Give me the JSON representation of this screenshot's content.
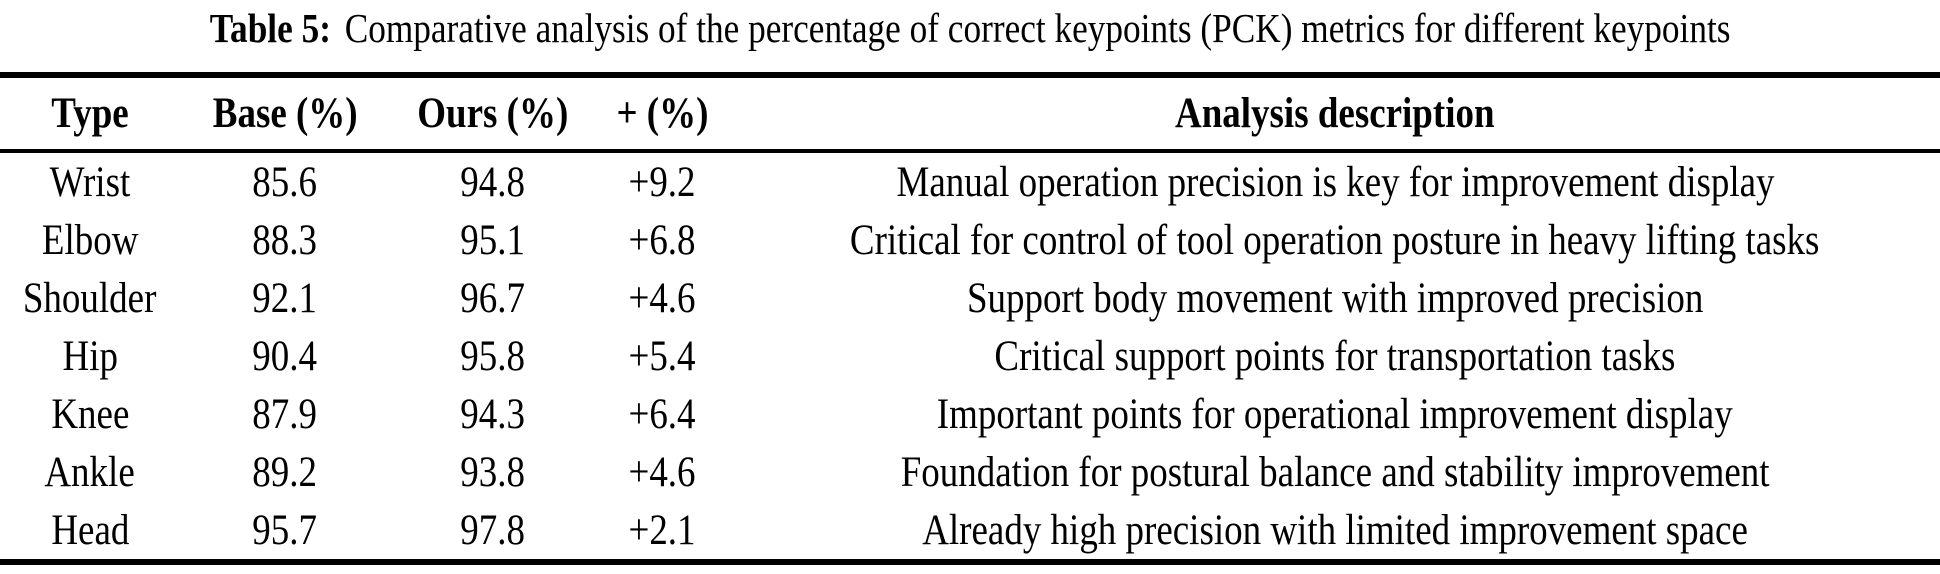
{
  "caption": {
    "label": "Table 5:",
    "text": "Comparative analysis of the percentage of correct keypoints (PCK) metrics for different keypoints"
  },
  "table": {
    "columns": [
      "Type",
      "Base (%)",
      "Ours (%)",
      "+ (%)",
      "Analysis description"
    ],
    "rows": [
      {
        "type": "Wrist",
        "base": "85.6",
        "ours": "94.8",
        "delta": "+9.2",
        "description": "Manual operation precision is key for improvement display"
      },
      {
        "type": "Elbow",
        "base": "88.3",
        "ours": "95.1",
        "delta": "+6.8",
        "description": "Critical for control of tool operation posture in heavy lifting tasks"
      },
      {
        "type": "Shoulder",
        "base": "92.1",
        "ours": "96.7",
        "delta": "+4.6",
        "description": "Support body movement with improved precision"
      },
      {
        "type": "Hip",
        "base": "90.4",
        "ours": "95.8",
        "delta": "+5.4",
        "description": "Critical support points for transportation tasks"
      },
      {
        "type": "Knee",
        "base": "87.9",
        "ours": "94.3",
        "delta": "+6.4",
        "description": "Important points for operational improvement display"
      },
      {
        "type": "Ankle",
        "base": "89.2",
        "ours": "93.8",
        "delta": "+4.6",
        "description": "Foundation for postural balance and stability improvement"
      },
      {
        "type": "Head",
        "base": "95.7",
        "ours": "97.8",
        "delta": "+2.1",
        "description": "Already high precision with limited improvement space"
      }
    ]
  },
  "colors": {
    "text": "#000000",
    "background": "#ffffff",
    "rule": "#000000"
  }
}
